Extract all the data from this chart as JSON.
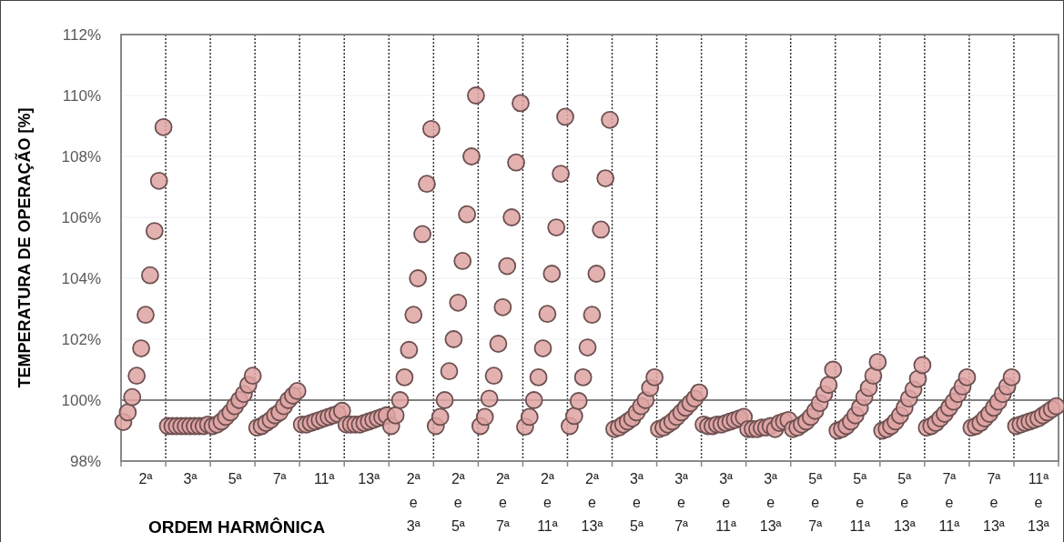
{
  "chart_data": {
    "type": "scatter",
    "xlabel": "ORDEM HARMÔNICA",
    "ylabel": "TEMPERATURA DE OPERAÇÃO [%]",
    "categories": [
      null,
      null,
      null,
      null,
      null,
      "2ª",
      null,
      null,
      null,
      null,
      null,
      null,
      null,
      null,
      null,
      "3ª",
      null,
      null,
      null,
      null,
      null,
      null,
      null,
      null,
      null,
      "5ª",
      null,
      null,
      null,
      null,
      null,
      null,
      null,
      null,
      null,
      "7ª",
      null,
      null,
      null,
      null,
      null,
      null,
      null,
      null,
      null,
      "11ª",
      null,
      null,
      null,
      null,
      null,
      null,
      null,
      null,
      null,
      "13ª",
      null,
      null,
      null,
      null,
      null,
      null,
      null,
      null,
      null,
      "2ª e 3ª",
      null,
      null,
      null,
      null,
      null,
      null,
      null,
      null,
      null,
      "2ª e 5ª",
      null,
      null,
      null,
      null,
      null,
      null,
      null,
      null,
      null,
      "2ª e 7ª",
      null,
      null,
      null,
      null,
      null,
      null,
      null,
      null,
      null,
      "2ª e 11ª",
      null,
      null,
      null,
      null,
      null,
      null,
      null,
      null,
      null,
      "2ª e 13ª",
      null,
      null,
      null,
      null,
      null,
      null,
      null,
      null,
      null,
      "3ª e 5ª",
      null,
      null,
      null,
      null,
      null,
      null,
      null,
      null,
      null,
      "3ª e 7ª",
      null,
      null,
      null,
      null,
      null,
      null,
      null,
      null,
      null,
      "3ª e 11ª",
      null,
      null,
      null,
      null,
      null,
      null,
      null,
      null,
      null,
      "3ª e 13ª",
      null,
      null,
      null,
      null,
      null,
      null,
      null,
      null,
      null,
      "5ª e 7ª",
      null,
      null,
      null,
      null,
      null,
      null,
      null,
      null,
      null,
      "5ª e 11ª",
      null,
      null,
      null,
      null,
      null,
      null,
      null,
      null,
      null,
      "5ª e 13ª",
      null,
      null,
      null,
      null,
      null,
      null,
      null,
      null,
      null,
      "7ª e 11ª",
      null,
      null,
      null,
      null,
      null,
      null,
      null,
      null,
      null,
      "7ª e 13ª",
      null,
      null,
      null,
      null,
      null,
      null,
      null,
      null,
      null,
      "11ª e 13ª",
      null,
      null,
      null,
      null
    ],
    "series": [
      {
        "color": "#dfa3a3",
        "values": [
          99.28,
          99.6,
          100.1,
          100.8,
          101.7,
          102.8,
          104.1,
          105.55,
          107.2,
          108.96,
          99.15,
          99.15,
          99.15,
          99.15,
          99.15,
          99.15,
          99.15,
          99.15,
          99.15,
          99.2,
          99.15,
          99.2,
          99.3,
          99.45,
          99.6,
          99.8,
          100.0,
          100.2,
          100.5,
          100.8,
          99.1,
          99.15,
          99.25,
          99.35,
          99.5,
          99.6,
          99.8,
          100.0,
          100.15,
          100.3,
          99.2,
          99.2,
          99.25,
          99.3,
          99.35,
          99.4,
          99.45,
          99.5,
          99.55,
          99.65,
          99.2,
          99.2,
          99.2,
          99.2,
          99.25,
          99.3,
          99.35,
          99.4,
          99.45,
          99.5,
          99.15,
          99.5,
          100.0,
          100.75,
          101.65,
          102.8,
          104.0,
          105.45,
          107.1,
          108.9,
          99.15,
          99.45,
          100.0,
          100.95,
          102.0,
          103.2,
          104.57,
          106.1,
          108.0,
          110.0,
          99.15,
          99.45,
          100.05,
          100.8,
          101.85,
          103.05,
          104.4,
          106.0,
          107.8,
          109.75,
          99.13,
          99.45,
          100.0,
          100.75,
          101.7,
          102.83,
          104.15,
          105.67,
          107.43,
          109.3,
          99.15,
          99.48,
          99.97,
          100.75,
          101.73,
          102.8,
          104.15,
          105.6,
          107.28,
          109.2,
          99.05,
          99.1,
          99.2,
          99.3,
          99.4,
          99.6,
          99.8,
          100.0,
          100.4,
          100.75,
          99.05,
          99.1,
          99.2,
          99.3,
          99.45,
          99.6,
          99.75,
          99.9,
          100.05,
          100.25,
          99.2,
          99.15,
          99.15,
          99.2,
          99.2,
          99.25,
          99.3,
          99.35,
          99.4,
          99.45,
          99.05,
          99.05,
          99.05,
          99.1,
          99.1,
          99.15,
          99.05,
          99.25,
          99.3,
          99.35,
          99.05,
          99.1,
          99.2,
          99.3,
          99.45,
          99.65,
          99.9,
          100.2,
          100.5,
          101.0,
          99.0,
          99.05,
          99.15,
          99.3,
          99.5,
          99.75,
          100.1,
          100.4,
          100.8,
          101.25,
          99.0,
          99.05,
          99.15,
          99.3,
          99.5,
          99.75,
          100.05,
          100.35,
          100.7,
          101.15,
          99.1,
          99.15,
          99.25,
          99.4,
          99.55,
          99.75,
          99.95,
          100.2,
          100.45,
          100.75,
          99.1,
          99.15,
          99.25,
          99.4,
          99.55,
          99.75,
          99.95,
          100.2,
          100.45,
          100.75,
          99.15,
          99.2,
          99.25,
          99.3,
          99.35,
          99.4,
          99.5,
          99.6,
          99.7,
          99.8
        ]
      }
    ],
    "ylim": [
      98,
      112
    ],
    "yticks": [
      {
        "value": 98,
        "label": "98%"
      },
      {
        "value": 100,
        "label": "100%"
      },
      {
        "value": 102,
        "label": "102%"
      },
      {
        "value": 104,
        "label": "104%"
      },
      {
        "value": 106,
        "label": "106%"
      },
      {
        "value": 108,
        "label": "108%"
      },
      {
        "value": 110,
        "label": "110%"
      },
      {
        "value": 112,
        "label": "112%"
      }
    ],
    "grid": true,
    "marker": "circle",
    "ref_lines": [
      {
        "axis": "y",
        "value": 100,
        "color": "#808080"
      }
    ]
  }
}
